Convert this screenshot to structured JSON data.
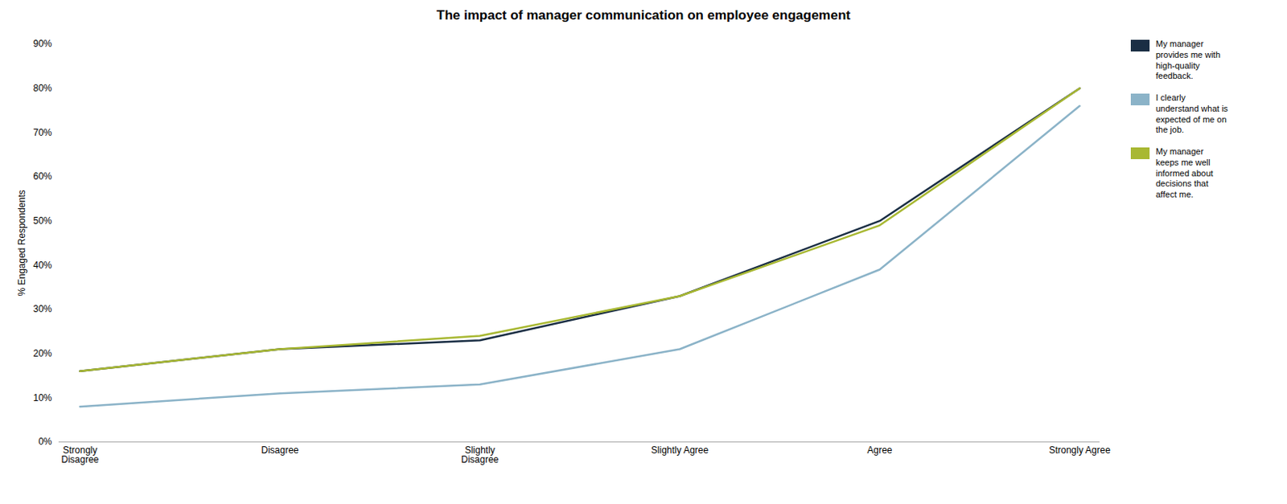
{
  "chart_data": {
    "type": "line",
    "title": "The impact of manager communication on employee engagement",
    "categories": [
      "Strongly\nDisagree",
      "Disagree",
      "Slightly\nDisagree",
      "Slightly Agree",
      "Agree",
      "Strongly Agree"
    ],
    "ylabel": "% Engaged Respondents",
    "ylim": [
      0,
      0.9
    ],
    "yticks": [
      {
        "value": 0,
        "label": "0%"
      },
      {
        "value": 0.1,
        "label": "10%"
      },
      {
        "value": 0.2,
        "label": "20%"
      },
      {
        "value": 0.3,
        "label": "30%"
      },
      {
        "value": 0.4,
        "label": "40%"
      },
      {
        "value": 0.5,
        "label": "50%"
      },
      {
        "value": 0.6,
        "label": "60%"
      },
      {
        "value": 0.7,
        "label": "70%"
      },
      {
        "value": 0.8,
        "label": "80%"
      },
      {
        "value": 0.9,
        "label": "90%"
      }
    ],
    "grid": false,
    "legend": "right",
    "series": [
      {
        "name": "My manager\nprovides me with\nhigh-quality\nfeedback.",
        "color": "#1a2e44",
        "values": [
          0.16,
          0.21,
          0.23,
          0.33,
          0.5,
          0.8
        ]
      },
      {
        "name": "I clearly\nunderstand what is\nexpected of me on\nthe job.",
        "color": "#8bb3c8",
        "values": [
          0.08,
          0.11,
          0.13,
          0.21,
          0.39,
          0.76
        ]
      },
      {
        "name": "My manager\nkeeps me well\ninformed about\ndecisions that\naffect me.",
        "color": "#a8b832",
        "values": [
          0.16,
          0.21,
          0.24,
          0.33,
          0.49,
          0.8
        ]
      }
    ]
  }
}
